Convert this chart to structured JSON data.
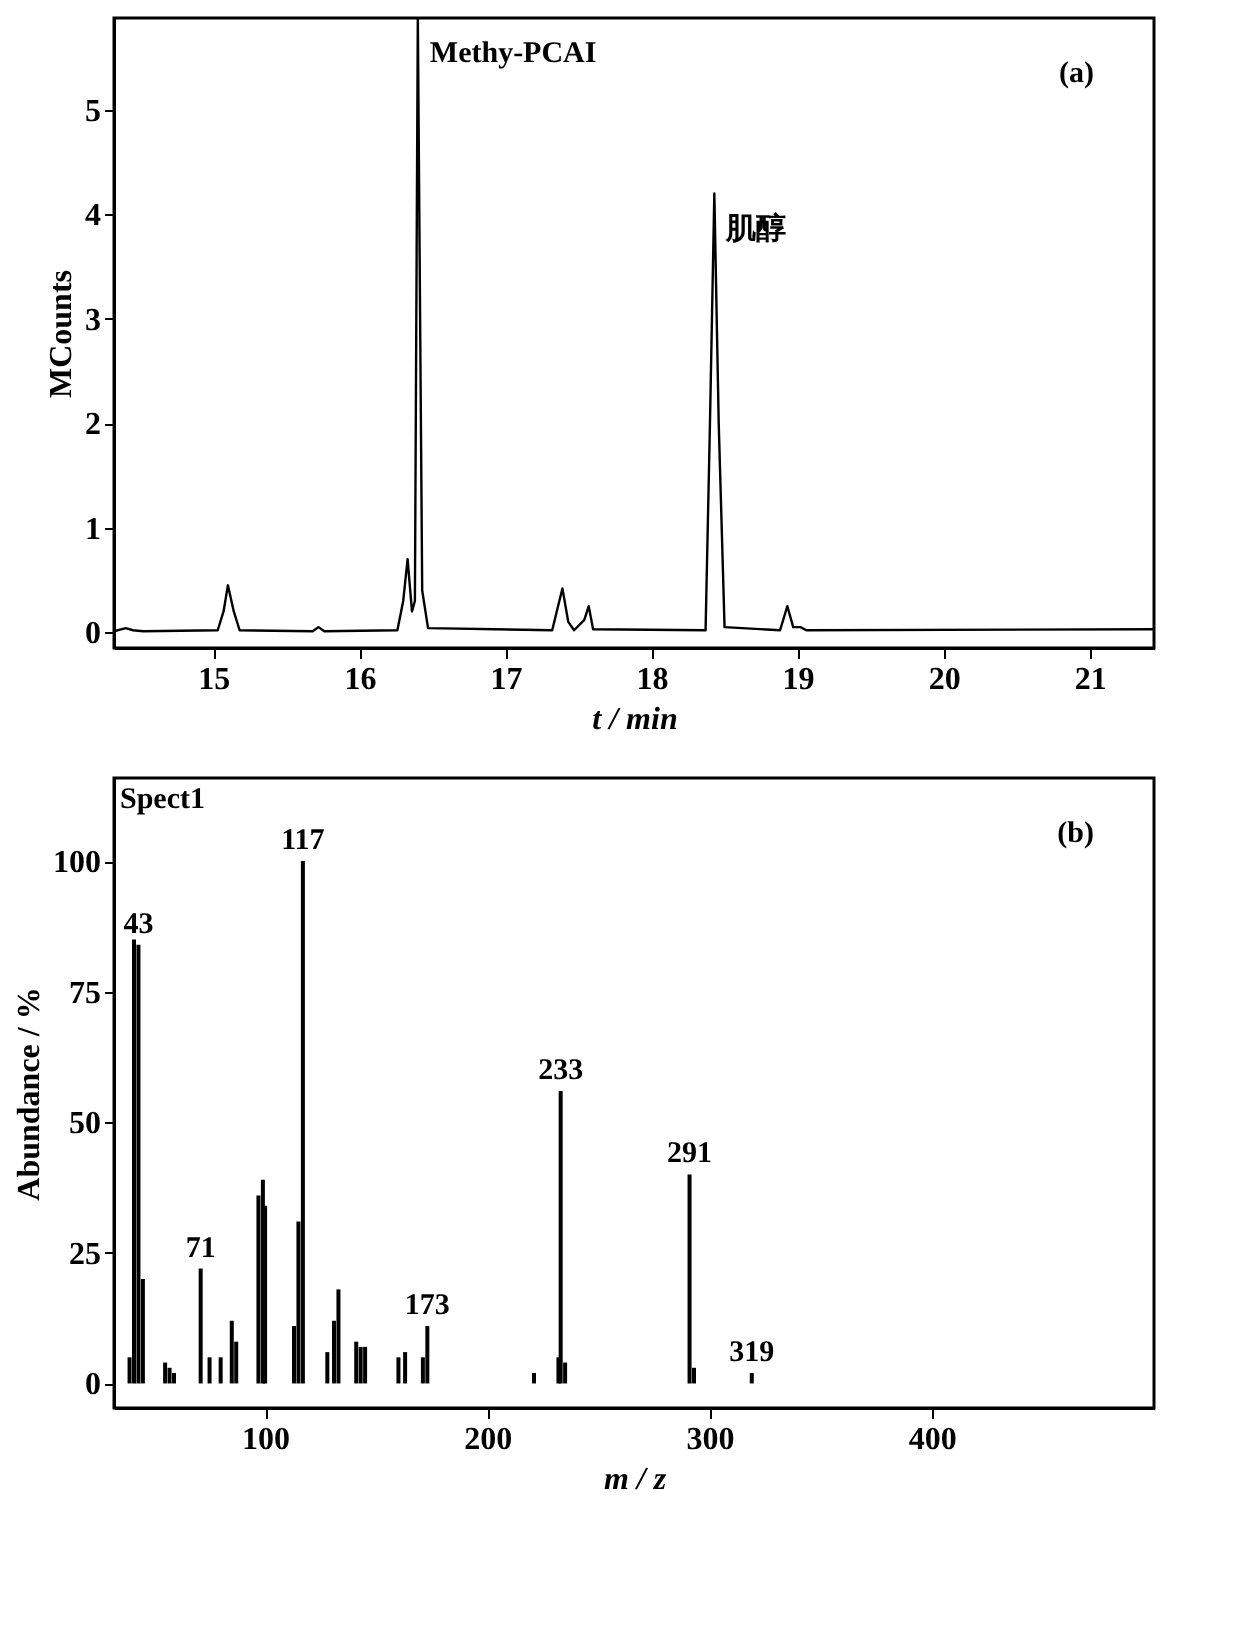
{
  "chart_data": [
    {
      "type": "line",
      "xlabel": "t / min",
      "ylabel": "MCounts",
      "xlim": [
        14.32,
        21.44
      ],
      "ylim": [
        -0.15,
        5.88
      ],
      "xticks": [
        15,
        16,
        17,
        18,
        19,
        20,
        21
      ],
      "yticks": [
        0,
        1,
        2,
        3,
        4,
        5
      ],
      "grid": false,
      "legend": false,
      "annotations": [
        {
          "text": "Methy-PCAI",
          "x": 16.4,
          "y": 5.88
        },
        {
          "text": "肌醇",
          "x": 18.43,
          "y": 4.2
        },
        "(a)"
      ],
      "x": [
        14.32,
        14.4,
        14.45,
        14.52,
        15.03,
        15.07,
        15.1,
        15.14,
        15.18,
        15.68,
        15.72,
        15.76,
        16.26,
        16.3,
        16.33,
        16.36,
        16.38,
        16.4,
        16.43,
        16.47,
        17.32,
        17.36,
        17.39,
        17.43,
        17.47,
        17.54,
        17.57,
        17.6,
        18.37,
        18.4,
        18.43,
        18.46,
        18.5,
        18.88,
        18.93,
        18.97,
        19.02,
        19.06,
        21.44
      ],
      "series": [
        {
          "color": "#000000",
          "values": [
            0.01,
            0.04,
            0.02,
            0.01,
            0.02,
            0.2,
            0.45,
            0.2,
            0.02,
            0.01,
            0.05,
            0.01,
            0.02,
            0.3,
            0.7,
            0.2,
            0.3,
            5.88,
            0.4,
            0.04,
            0.02,
            0.25,
            0.42,
            0.1,
            0.02,
            0.12,
            0.25,
            0.03,
            0.02,
            2.0,
            4.2,
            2.0,
            0.05,
            0.02,
            0.25,
            0.05,
            0.05,
            0.02,
            0.03
          ]
        }
      ]
    },
    {
      "type": "bar",
      "xlabel": "m / z",
      "ylabel": "Abundance / %",
      "xlim": [
        32,
        500
      ],
      "ylim": [
        -4.7,
        115.9
      ],
      "xticks": [
        100,
        200,
        300,
        400
      ],
      "yticks": [
        0,
        25,
        50,
        75,
        100
      ],
      "grid": false,
      "legend": false,
      "annotations": [
        {
          "text": "43",
          "x": 43,
          "y": 84
        },
        {
          "text": "71",
          "x": 71,
          "y": 22
        },
        {
          "text": "117",
          "x": 117,
          "y": 100
        },
        {
          "text": "173",
          "x": 173,
          "y": 11
        },
        {
          "text": "233",
          "x": 233,
          "y": 56
        },
        {
          "text": "291",
          "x": 291,
          "y": 40
        },
        {
          "text": "319",
          "x": 319,
          "y": 2
        },
        "Spect1",
        "(b)"
      ],
      "x": [
        39,
        41,
        43,
        45,
        55,
        57,
        59,
        71,
        75,
        80,
        85,
        87,
        97,
        99,
        100,
        113,
        115,
        117,
        128,
        131,
        133,
        141,
        143,
        145,
        160,
        163,
        171,
        173,
        221,
        232,
        233,
        235,
        291,
        293,
        319
      ],
      "series": [
        {
          "color": "#000000",
          "values": [
            5,
            85,
            84,
            20,
            4,
            3,
            2,
            22,
            5,
            5,
            12,
            8,
            36,
            39,
            34,
            11,
            31,
            100,
            6,
            12,
            18,
            8,
            7,
            7,
            5,
            6,
            5,
            11,
            2,
            5,
            56,
            4,
            40,
            3,
            2
          ]
        }
      ]
    }
  ]
}
